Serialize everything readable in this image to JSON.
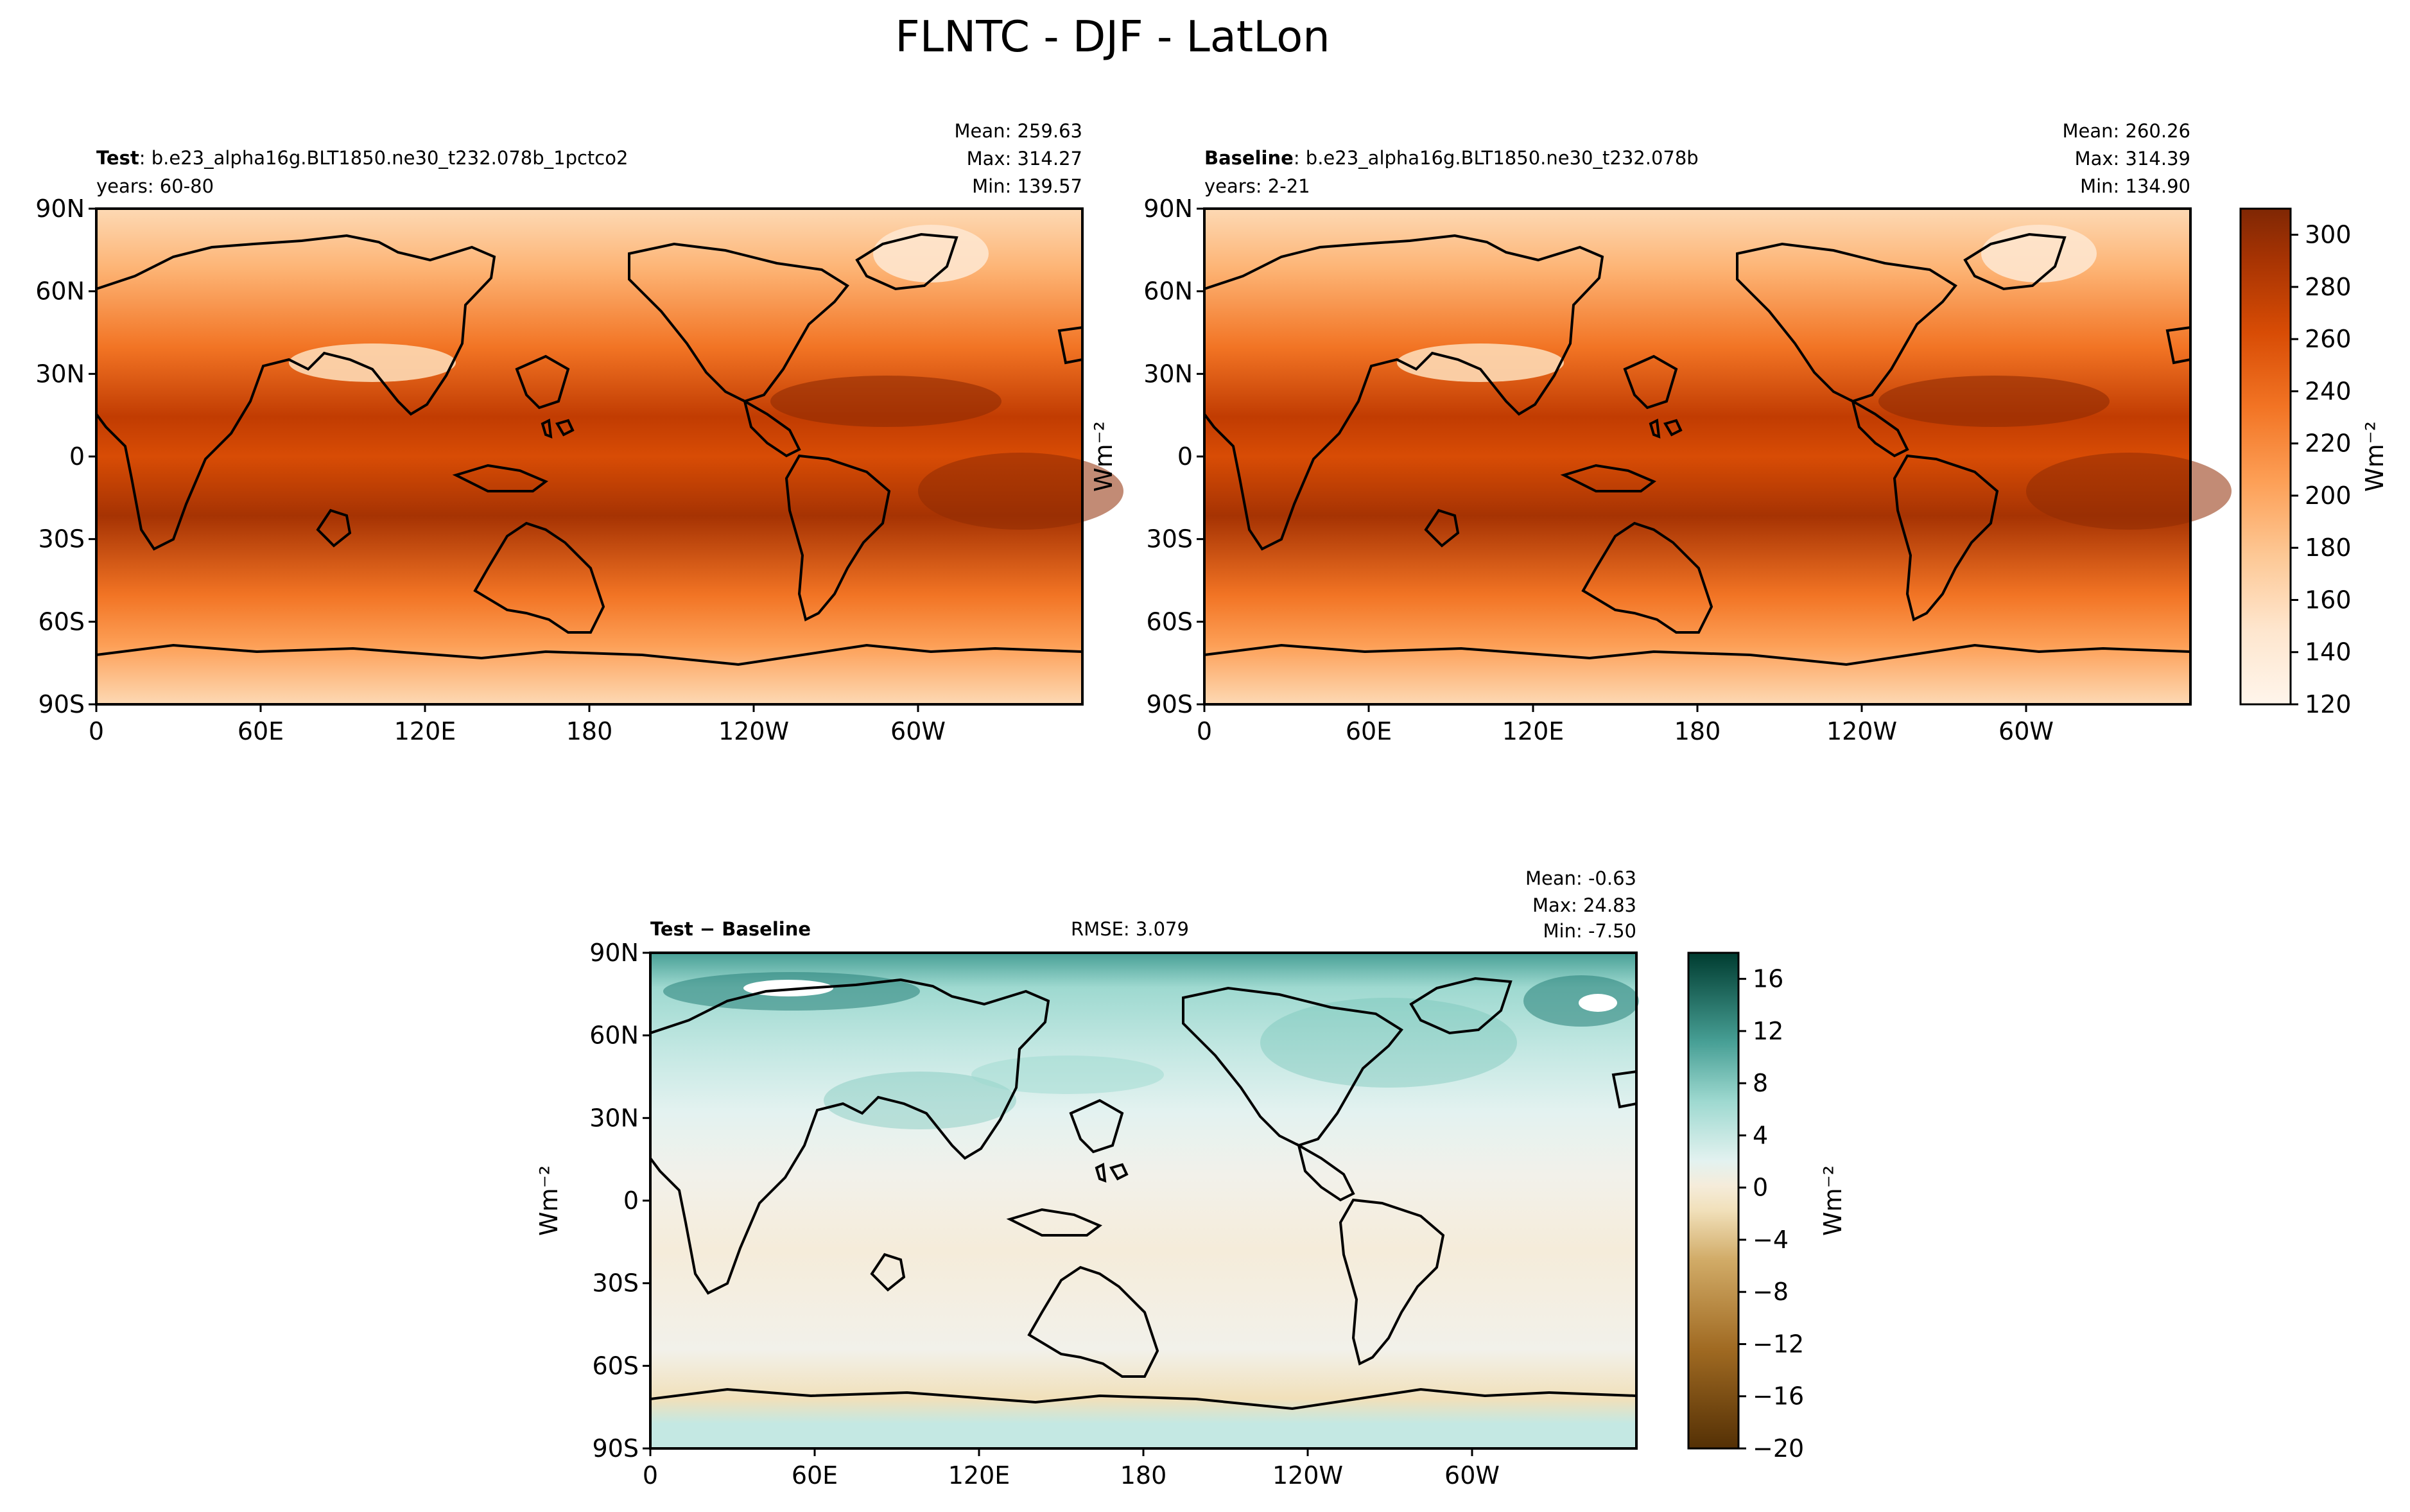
{
  "figure": {
    "title": "FLNTC - DJF - LatLon"
  },
  "colors": {
    "frame": "#000000",
    "coast": "#000000",
    "orange_scale": [
      "#fff5eb",
      "#fee6ce",
      "#fdd9b4",
      "#fdc895",
      "#fdb475",
      "#fd9f56",
      "#f98b3c",
      "#f27424",
      "#e75f11",
      "#d84c05",
      "#c13c02",
      "#a63303",
      "#8f2c03",
      "#7f2704"
    ],
    "diff_scale": [
      "#543005",
      "#6d3f09",
      "#86520e",
      "#a06a22",
      "#b98541",
      "#d1ab67",
      "#e4cc94",
      "#f1e0ba",
      "#f5ecda",
      "#f2f1ea",
      "#e3f2f0",
      "#c4e8e3",
      "#9ed9d0",
      "#72c2b7",
      "#479f95",
      "#268079",
      "#0c625b",
      "#003c30"
    ]
  },
  "chart_data": [
    {
      "type": "heatmap",
      "panel": "test",
      "label_bold": "Test",
      "label_rest": ": b.e23_alpha16g.BLT1850.ne30_t232.078b_1pctco2",
      "years": "years: 60-80",
      "stats": [
        "Mean: 259.63",
        "Max: 314.27",
        "Min: 139.57"
      ],
      "ylabel": "",
      "xticks": [
        "0",
        "60E",
        "120E",
        "180",
        "120W",
        "60W"
      ],
      "yticks": [
        "90N",
        "60N",
        "30N",
        "0",
        "30S",
        "60S",
        "90S"
      ],
      "xlim": [
        0,
        360
      ],
      "ylim": [
        -90,
        90
      ],
      "colormap": "Oranges"
    },
    {
      "type": "heatmap",
      "panel": "baseline",
      "label_bold": "Baseline",
      "label_rest": ": b.e23_alpha16g.BLT1850.ne30_t232.078b",
      "years": "years: 2-21",
      "stats": [
        "Mean: 260.26",
        "Max: 314.39",
        "Min: 134.90"
      ],
      "ylabel": "Wm⁻²",
      "xticks": [
        "0",
        "60E",
        "120E",
        "180",
        "120W",
        "60W"
      ],
      "yticks": [
        "90N",
        "60N",
        "30N",
        "0",
        "30S",
        "60S",
        "90S"
      ],
      "xlim": [
        0,
        360
      ],
      "ylim": [
        -90,
        90
      ],
      "colorbar": {
        "range": [
          120,
          310
        ],
        "ticks": [
          "300",
          "280",
          "260",
          "240",
          "220",
          "200",
          "180",
          "160",
          "140",
          "120"
        ],
        "label": "Wm⁻²"
      }
    },
    {
      "type": "heatmap",
      "panel": "difference",
      "label_bold": "Test − Baseline",
      "rmse": "RMSE: 3.079",
      "stats": [
        "Mean: -0.63",
        "Max: 24.83",
        "Min: -7.50"
      ],
      "ylabel": "Wm⁻²",
      "xticks": [
        "0",
        "60E",
        "120E",
        "180",
        "120W",
        "60W"
      ],
      "yticks": [
        "90N",
        "60N",
        "30N",
        "0",
        "30S",
        "60S",
        "90S"
      ],
      "xlim": [
        0,
        360
      ],
      "ylim": [
        -90,
        90
      ],
      "colorbar": {
        "range": [
          -20,
          18
        ],
        "ticks": [
          "16",
          "12",
          "8",
          "4",
          "0",
          "−4",
          "−8",
          "−12",
          "−16",
          "−20"
        ],
        "label": "Wm⁻²"
      }
    }
  ]
}
